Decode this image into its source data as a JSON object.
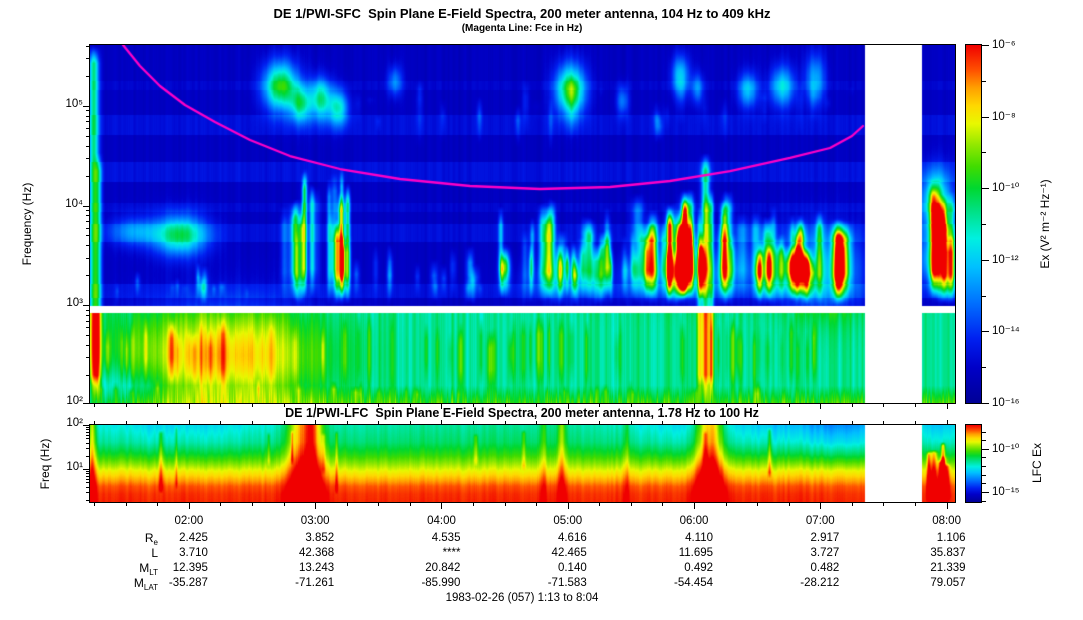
{
  "colormap": [
    [
      0.0,
      "#000096"
    ],
    [
      0.1,
      "#0000C8"
    ],
    [
      0.18,
      "#0020F0"
    ],
    [
      0.28,
      "#0070FF"
    ],
    [
      0.38,
      "#00C0FF"
    ],
    [
      0.46,
      "#00F0E0"
    ],
    [
      0.54,
      "#00E080"
    ],
    [
      0.6,
      "#00D830"
    ],
    [
      0.66,
      "#40DC00"
    ],
    [
      0.72,
      "#90E800"
    ],
    [
      0.78,
      "#E8F800"
    ],
    [
      0.83,
      "#FFD800"
    ],
    [
      0.88,
      "#FFA000"
    ],
    [
      0.93,
      "#FF5000"
    ],
    [
      1.0,
      "#F00000"
    ]
  ],
  "chart_data": [
    {
      "id": "sfc",
      "type": "heatmap",
      "kind": "sfc",
      "title": "DE 1/PWI-SFC  Spin Plane E-Field Spectra, 200 meter antenna, 104 Hz to 409 kHz",
      "subtitle": "(Magenta Line: Fce in Hz)",
      "ylabel": "Frequency (Hz)",
      "y_scale": "log",
      "y_range_hz": [
        104,
        409000
      ],
      "y_tick_labels": [
        "10⁵",
        "10⁴",
        "10³",
        "10²"
      ],
      "x_start": "01:13",
      "x_end": "08:04",
      "x_tick_labels": [
        "02:00",
        "03:00",
        "04:00",
        "05:00",
        "06:00",
        "07:00",
        "08:00"
      ],
      "colorbar": {
        "label": "Ex (V² m⁻² Hz⁻¹)",
        "tick_labels": [
          "10⁻⁶",
          "10⁻⁸",
          "10⁻¹⁰",
          "10⁻¹²",
          "10⁻¹⁴",
          "10⁻¹⁶"
        ]
      },
      "data_gap_frac": [
        0.896,
        0.962
      ],
      "white_band_frac": [
        0.728,
        0.748
      ],
      "seed": 11,
      "base_upper": 0.09,
      "base_lower": 0.52,
      "stripes": [
        [
          0.1,
          0.125,
          0.025
        ],
        [
          0.195,
          0.25,
          0.05
        ],
        [
          0.325,
          0.38,
          0.055
        ],
        [
          0.44,
          0.465,
          0.03
        ],
        [
          0.5,
          0.55,
          0.05
        ],
        [
          0.665,
          0.705,
          0.05
        ]
      ],
      "blobs": [
        [
          0.22,
          0.115,
          0.014,
          0.048,
          0.55
        ],
        [
          0.243,
          0.165,
          0.008,
          0.035,
          0.4
        ],
        [
          0.266,
          0.15,
          0.009,
          0.04,
          0.45
        ],
        [
          0.287,
          0.175,
          0.008,
          0.035,
          0.38
        ],
        [
          0.352,
          0.1,
          0.006,
          0.03,
          0.22
        ],
        [
          0.555,
          0.125,
          0.012,
          0.05,
          0.55
        ],
        [
          0.615,
          0.155,
          0.005,
          0.03,
          0.22
        ],
        [
          0.682,
          0.085,
          0.007,
          0.04,
          0.33
        ],
        [
          0.702,
          0.12,
          0.005,
          0.03,
          0.22
        ],
        [
          0.76,
          0.125,
          0.008,
          0.035,
          0.3
        ],
        [
          0.8,
          0.115,
          0.01,
          0.04,
          0.33
        ],
        [
          0.838,
          0.095,
          0.008,
          0.05,
          0.28
        ],
        [
          0.104,
          0.53,
          0.022,
          0.04,
          0.45
        ],
        [
          0.05,
          0.52,
          0.02,
          0.03,
          0.2
        ],
        [
          0.7,
          0.64,
          0.05,
          0.05,
          0.18
        ],
        [
          0.55,
          0.66,
          0.04,
          0.04,
          0.12
        ],
        [
          0.845,
          0.63,
          0.035,
          0.08,
          0.28
        ],
        [
          0.978,
          0.44,
          0.012,
          0.06,
          0.5
        ],
        [
          0.972,
          0.6,
          0.01,
          0.05,
          0.3
        ],
        [
          0.155,
          0.865,
          0.075,
          0.095,
          0.34
        ],
        [
          0.025,
          0.96,
          0.04,
          0.05,
          -0.12
        ]
      ],
      "streaks": [
        [
          0.004,
          0.0,
          1.0,
          0.45,
          0.004
        ],
        [
          0.009,
          0.3,
          1.0,
          0.25,
          0.003
        ],
        [
          0.711,
          0.3,
          1.0,
          0.42,
          0.0035
        ],
        [
          0.704,
          0.45,
          1.0,
          0.25,
          0.002
        ],
        [
          0.718,
          0.4,
          1.0,
          0.28,
          0.002
        ]
      ],
      "streak_groups": [
        {
          "n": 22,
          "x": [
            0.215,
            0.3
          ],
          "y0": [
            0.33,
            0.55
          ],
          "y1": [
            0.7,
            0.728
          ],
          "amp": [
            0.12,
            0.38
          ],
          "w": [
            0.0015,
            0.004
          ]
        },
        {
          "n": 14,
          "x": [
            0.3,
            0.47
          ],
          "y0": [
            0.55,
            0.66
          ],
          "y1": [
            0.7,
            0.728
          ],
          "amp": [
            0.08,
            0.25
          ],
          "w": [
            0.0015,
            0.003
          ]
        },
        {
          "n": 30,
          "x": [
            0.47,
            0.63
          ],
          "y0": [
            0.42,
            0.6
          ],
          "y1": [
            0.7,
            0.728
          ],
          "amp": [
            0.12,
            0.42
          ],
          "w": [
            0.0015,
            0.004
          ]
        },
        {
          "n": 38,
          "x": [
            0.62,
            0.79
          ],
          "y0": [
            0.38,
            0.58
          ],
          "y1": [
            0.7,
            0.728
          ],
          "amp": [
            0.15,
            0.48
          ],
          "w": [
            0.002,
            0.005
          ]
        },
        {
          "n": 20,
          "x": [
            0.79,
            0.893
          ],
          "y0": [
            0.46,
            0.6
          ],
          "y1": [
            0.7,
            0.728
          ],
          "amp": [
            0.15,
            0.42
          ],
          "w": [
            0.002,
            0.005
          ]
        },
        {
          "n": 10,
          "x": [
            0.963,
            0.996
          ],
          "y0": [
            0.36,
            0.55
          ],
          "y1": [
            0.7,
            0.728
          ],
          "amp": [
            0.15,
            0.45
          ],
          "w": [
            0.002,
            0.004
          ]
        },
        {
          "n": 12,
          "x": [
            0.02,
            0.2
          ],
          "y0": [
            0.6,
            0.68
          ],
          "y1": [
            0.7,
            0.728
          ],
          "amp": [
            0.1,
            0.3
          ],
          "w": [
            0.0015,
            0.003
          ]
        },
        {
          "n": 60,
          "x": [
            0.0,
            0.893
          ],
          "y0": [
            0.75,
            0.8
          ],
          "y1": [
            0.95,
            1.0
          ],
          "amp": [
            0.04,
            0.14
          ],
          "w": [
            0.001,
            0.003
          ]
        },
        {
          "n": 25,
          "x": [
            0.0,
            0.893
          ],
          "y0": [
            0.93,
            0.96
          ],
          "y1": [
            1.0,
            1.0
          ],
          "amp": [
            0.12,
            0.28
          ],
          "w": [
            0.001,
            0.0025
          ]
        },
        {
          "n": 30,
          "x": [
            0.3,
            0.89
          ],
          "y0": [
            0.08,
            0.2
          ],
          "y1": [
            0.14,
            0.3
          ],
          "amp": [
            0.05,
            0.14
          ],
          "w": [
            0.002,
            0.004
          ]
        }
      ],
      "fce_line": {
        "color": "#FF00C8",
        "points_frac": [
          [
            0.0382,
            0.0
          ],
          [
            0.0578,
            0.0587
          ],
          [
            0.0809,
            0.1145
          ],
          [
            0.1098,
            0.1676
          ],
          [
            0.1445,
            0.2151
          ],
          [
            0.185,
            0.2654
          ],
          [
            0.2312,
            0.3101
          ],
          [
            0.289,
            0.3464
          ],
          [
            0.3584,
            0.3743
          ],
          [
            0.4393,
            0.3939
          ],
          [
            0.5202,
            0.4022
          ],
          [
            0.6012,
            0.3966
          ],
          [
            0.6705,
            0.3799
          ],
          [
            0.7399,
            0.352
          ],
          [
            0.8092,
            0.3156
          ],
          [
            0.8555,
            0.2877
          ],
          [
            0.8809,
            0.2542
          ],
          [
            0.8936,
            0.2263
          ]
        ]
      }
    },
    {
      "id": "lfc",
      "type": "heatmap",
      "kind": "lfc",
      "title": "DE 1/PWI-LFC  Spin Plane E-Field Spectra, 200 meter antenna, 1.78 Hz to 100 Hz",
      "ylabel": "Freq (Hz)",
      "y_scale": "log",
      "y_range_hz": [
        1.78,
        100
      ],
      "y_tick_labels": [
        "10²",
        "10¹"
      ],
      "colorbar": {
        "label": "LFC Ex",
        "tick_labels": [
          "10⁻¹⁰",
          "10⁻¹⁵"
        ]
      },
      "data_gap_frac": [
        0.896,
        0.962
      ],
      "seed": 23,
      "profile": [
        [
          0,
          0.52
        ],
        [
          0.22,
          0.56
        ],
        [
          0.38,
          0.64
        ],
        [
          0.5,
          0.72
        ],
        [
          0.6,
          0.79
        ],
        [
          0.7,
          0.86
        ],
        [
          0.8,
          0.93
        ],
        [
          0.9,
          0.96
        ],
        [
          1,
          0.97
        ]
      ],
      "bursts": [
        {
          "x": 0.002,
          "sx": 0.003,
          "s": 0.3
        },
        {
          "x": 0.247,
          "sx": 0.013,
          "s": 0.4
        },
        {
          "x": 0.258,
          "sx": 0.006,
          "s": 0.2
        },
        {
          "x": 0.716,
          "sx": 0.011,
          "s": 0.42
        },
        {
          "x": 0.545,
          "sx": 0.0035,
          "s": 0.18
        },
        {
          "x": 0.524,
          "sx": 0.003,
          "s": 0.12
        },
        {
          "x": 0.62,
          "sx": 0.0025,
          "s": 0.1
        }
      ],
      "cools": [
        {
          "x": 0.1,
          "sx": 0.09,
          "s": 0.1
        },
        {
          "x": 0.68,
          "sx": 0.05,
          "s": 0.08
        },
        {
          "x": 0.8,
          "sx": 0.05,
          "s": 0.12
        },
        {
          "x": 0.875,
          "sx": 0.035,
          "s": 0.16
        },
        {
          "x": 0.98,
          "sx": 0.02,
          "s": 0.13
        }
      ],
      "streak_groups": [
        {
          "n": 10,
          "x": [
            0.08,
            0.86
          ],
          "y0": [
            0.0,
            0.1
          ],
          "y1": [
            0.5,
            0.9
          ],
          "amp": [
            0.06,
            0.16
          ],
          "w": [
            0.001,
            0.002
          ]
        },
        {
          "n": 6,
          "x": [
            0.965,
            0.995
          ],
          "y0": [
            0.2,
            0.5
          ],
          "y1": [
            1.0,
            1.0
          ],
          "amp": [
            0.15,
            0.3
          ],
          "w": [
            0.0015,
            0.003
          ]
        }
      ]
    }
  ],
  "footer": {
    "row_labels": [
      {
        "base": "R",
        "sub": "e"
      },
      {
        "base": "L",
        "sub": ""
      },
      {
        "base": "M",
        "sub": "LT"
      },
      {
        "base": "M",
        "sub": "LAT"
      }
    ],
    "columns": [
      {
        "time": "02:00",
        "values": [
          "2.425",
          "3.710",
          "12.395",
          "-35.287"
        ]
      },
      {
        "time": "03:00",
        "values": [
          "3.852",
          "42.368",
          "13.243",
          "-71.261"
        ]
      },
      {
        "time": "04:00",
        "values": [
          "4.535",
          "****",
          "20.842",
          "-85.990"
        ]
      },
      {
        "time": "05:00",
        "values": [
          "4.616",
          "42.465",
          "0.140",
          "-71.583"
        ]
      },
      {
        "time": "06:00",
        "values": [
          "4.110",
          "11.695",
          "0.492",
          "-54.454"
        ]
      },
      {
        "time": "07:00",
        "values": [
          "2.917",
          "3.727",
          "0.482",
          "-28.212"
        ]
      },
      {
        "time": "08:00",
        "values": [
          "1.106",
          "35.837",
          "21.339",
          "79.057"
        ]
      }
    ],
    "date_line": "1983-02-26 (057) 1:13 to 8:04"
  }
}
